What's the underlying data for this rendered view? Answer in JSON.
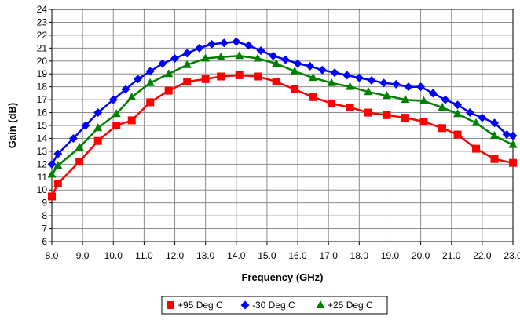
{
  "chart_data": {
    "type": "line",
    "xlabel": "Frequency (GHz)",
    "ylabel": "Gain (dB)",
    "xlim": [
      8.0,
      23.0
    ],
    "ylim": [
      6,
      24
    ],
    "x_ticks": [
      "8.0",
      "9.0",
      "10.0",
      "11.0",
      "12.0",
      "13.0",
      "14.0",
      "15.0",
      "16.0",
      "17.0",
      "18.0",
      "19.0",
      "20.0",
      "21.0",
      "22.0",
      "23.0"
    ],
    "y_ticks": [
      "6",
      "7",
      "8",
      "9",
      "10",
      "11",
      "12",
      "13",
      "14",
      "15",
      "16",
      "17",
      "18",
      "19",
      "20",
      "21",
      "22",
      "23",
      "24"
    ],
    "grid": true,
    "legend_position": "bottom",
    "series": [
      {
        "name": "+95 Deg C",
        "color": "#ff0000",
        "marker": "square",
        "x": [
          8.0,
          8.2,
          8.9,
          9.5,
          10.1,
          10.6,
          11.2,
          11.8,
          12.4,
          13.0,
          13.5,
          14.1,
          14.7,
          15.3,
          15.9,
          16.5,
          17.1,
          17.7,
          18.3,
          18.9,
          19.5,
          20.1,
          20.7,
          21.2,
          21.8,
          22.4,
          23.0
        ],
        "y": [
          9.5,
          10.5,
          12.2,
          13.8,
          15.0,
          15.4,
          16.8,
          17.7,
          18.4,
          18.6,
          18.8,
          18.9,
          18.8,
          18.4,
          17.8,
          17.2,
          16.7,
          16.4,
          16.0,
          15.8,
          15.6,
          15.3,
          14.8,
          14.3,
          13.2,
          12.4,
          12.1
        ]
      },
      {
        "name": "-30 Deg C",
        "color": "#0000ff",
        "marker": "diamond",
        "x": [
          8.0,
          8.2,
          8.7,
          9.1,
          9.5,
          10.0,
          10.4,
          10.8,
          11.2,
          11.6,
          12.0,
          12.4,
          12.8,
          13.2,
          13.6,
          14.0,
          14.4,
          14.8,
          15.2,
          15.6,
          16.0,
          16.4,
          16.8,
          17.2,
          17.6,
          18.0,
          18.4,
          18.8,
          19.2,
          19.6,
          20.0,
          20.4,
          20.8,
          21.2,
          21.6,
          22.0,
          22.4,
          22.8,
          23.0
        ],
        "y": [
          12.0,
          12.8,
          14.0,
          15.0,
          16.0,
          17.0,
          17.8,
          18.6,
          19.2,
          19.8,
          20.2,
          20.6,
          21.0,
          21.3,
          21.4,
          21.5,
          21.2,
          20.8,
          20.4,
          20.1,
          19.8,
          19.6,
          19.3,
          19.1,
          18.9,
          18.7,
          18.5,
          18.3,
          18.2,
          18.0,
          18.0,
          17.5,
          17.0,
          16.6,
          16.0,
          15.6,
          15.2,
          14.3,
          14.2
        ]
      },
      {
        "name": "+25 Deg C",
        "color": "#008000",
        "marker": "triangle",
        "x": [
          8.0,
          8.2,
          8.9,
          9.5,
          10.1,
          10.6,
          11.2,
          11.8,
          12.4,
          13.0,
          13.5,
          14.1,
          14.7,
          15.3,
          15.9,
          16.5,
          17.1,
          17.7,
          18.3,
          18.9,
          19.5,
          20.1,
          20.7,
          21.2,
          21.8,
          22.4,
          23.0
        ],
        "y": [
          11.2,
          11.9,
          13.3,
          14.8,
          15.9,
          17.2,
          18.3,
          19.0,
          19.7,
          20.2,
          20.3,
          20.4,
          20.2,
          19.8,
          19.2,
          18.7,
          18.3,
          18.0,
          17.6,
          17.3,
          17.0,
          16.9,
          16.4,
          15.9,
          15.2,
          14.2,
          13.5
        ]
      }
    ]
  }
}
